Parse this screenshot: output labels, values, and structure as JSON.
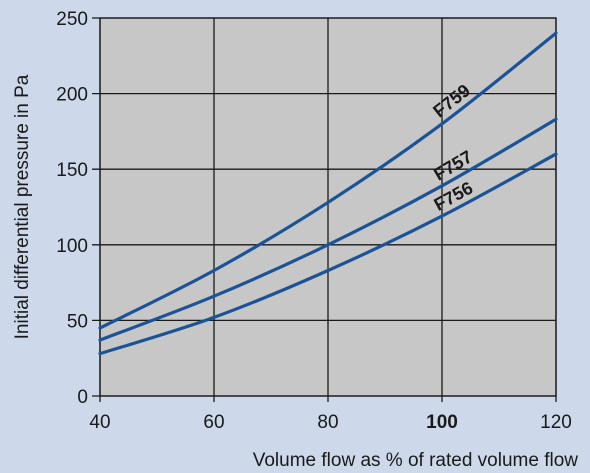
{
  "chart_data": {
    "type": "line",
    "title": "",
    "xlabel": "Volume flow as % of rated volume flow",
    "ylabel": "Initial differential pressure in Pa",
    "xlim": [
      40,
      120
    ],
    "ylim": [
      0,
      250
    ],
    "xticks": [
      40,
      60,
      80,
      100,
      120
    ],
    "yticks": [
      0,
      50,
      100,
      150,
      200,
      250
    ],
    "x_bold_tick": 100,
    "grid": true,
    "legend": "none",
    "colors": {
      "background": "#cdd9ea",
      "plot_area": "#c7c7c7",
      "grid": "#1a1a1a",
      "line": "#1c5296"
    },
    "series": [
      {
        "name": "F759",
        "x": [
          40,
          60,
          80,
          100,
          120
        ],
        "y": [
          45,
          83,
          128,
          180,
          240
        ]
      },
      {
        "name": "F757",
        "x": [
          40,
          60,
          80,
          100,
          120
        ],
        "y": [
          37,
          66,
          100,
          139,
          183
        ]
      },
      {
        "name": "F756",
        "x": [
          40,
          60,
          80,
          100,
          120
        ],
        "y": [
          28,
          52,
          83,
          119,
          160
        ]
      }
    ]
  }
}
